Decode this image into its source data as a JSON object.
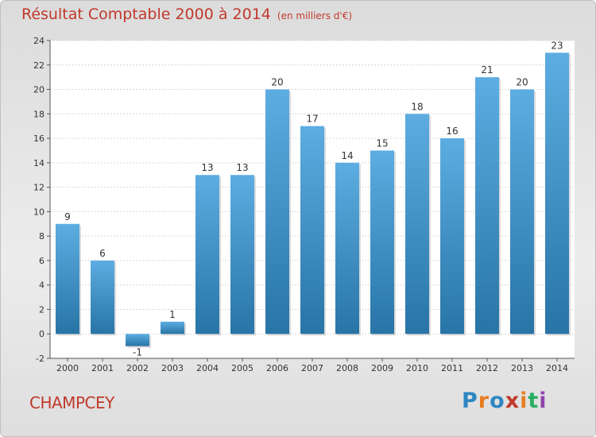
{
  "header": {
    "title": "Résultat Comptable 2000 à 2014",
    "unit": "(en milliers d'€)"
  },
  "footer": {
    "place": "CHAMPCEY",
    "logo": [
      "P",
      "r",
      "o",
      "x",
      "i",
      "t",
      "i"
    ],
    "logo_colors": [
      "#2e86c1",
      "#e67e22",
      "#2e86c1",
      "#c0392b",
      "#e67e22",
      "#27ae60",
      "#8e44ad"
    ]
  },
  "colors": {
    "bar_light": "#5dade2",
    "bar_dark": "#2874a6",
    "title": "#c0392b"
  },
  "chart_data": {
    "type": "bar",
    "title": "Résultat Comptable 2000 à 2014",
    "xlabel": "",
    "ylabel": "",
    "categories": [
      "2000",
      "2001",
      "2002",
      "2003",
      "2004",
      "2005",
      "2006",
      "2007",
      "2008",
      "2009",
      "2010",
      "2011",
      "2012",
      "2013",
      "2014"
    ],
    "values": [
      9,
      6,
      -1,
      1,
      13,
      13,
      20,
      17,
      14,
      15,
      18,
      16,
      21,
      20,
      23
    ],
    "ylim": [
      -2,
      24
    ],
    "yticks": [
      -2,
      0,
      2,
      4,
      6,
      8,
      10,
      12,
      14,
      16,
      18,
      20,
      22,
      24
    ],
    "grid": true,
    "legend": "none"
  }
}
